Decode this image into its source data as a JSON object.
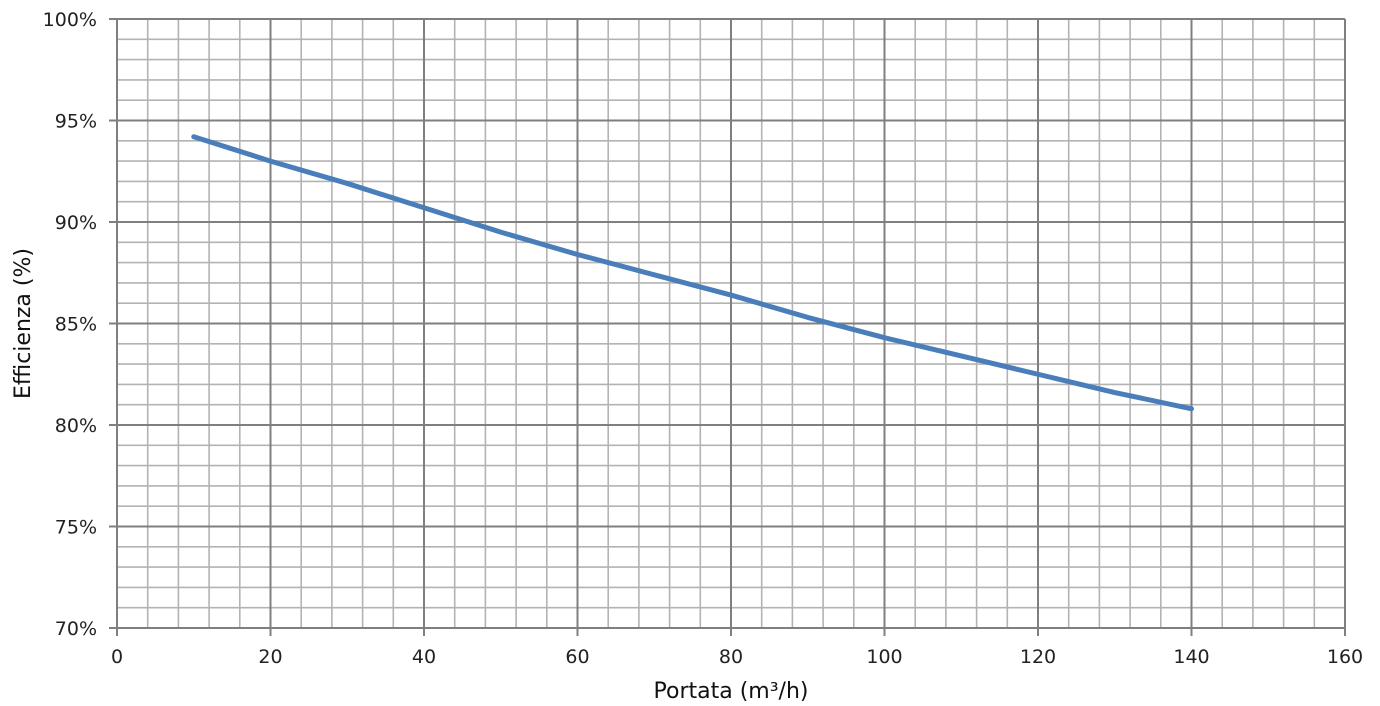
{
  "chart_data": {
    "type": "line",
    "title": "",
    "xlabel": "Portata (m³/h)",
    "ylabel": "Efficienza (%)",
    "xlim": [
      0,
      160
    ],
    "ylim": [
      70,
      100
    ],
    "x_major_step": 20,
    "x_minor_step": 4,
    "y_major_step": 5,
    "y_minor_step": 1,
    "x_tick_labels": [
      "0",
      "20",
      "40",
      "60",
      "80",
      "100",
      "120",
      "140",
      "160"
    ],
    "y_tick_labels": [
      "70%",
      "75%",
      "80%",
      "85%",
      "90%",
      "95%",
      "100%"
    ],
    "grid": true,
    "legend": "none",
    "series": [
      {
        "color": "#4a7ebb",
        "x": [
          10,
          20,
          30,
          40,
          50,
          60,
          70,
          80,
          90,
          100,
          110,
          120,
          130,
          140
        ],
        "y": [
          94.2,
          93.0,
          91.9,
          90.7,
          89.5,
          88.4,
          87.4,
          86.4,
          85.3,
          84.3,
          83.4,
          82.5,
          81.6,
          80.8
        ]
      }
    ],
    "colors": {
      "major_grid": "#7f7f7f",
      "minor_grid": "#b3b3b3",
      "axis": "#7f7f7f"
    }
  }
}
